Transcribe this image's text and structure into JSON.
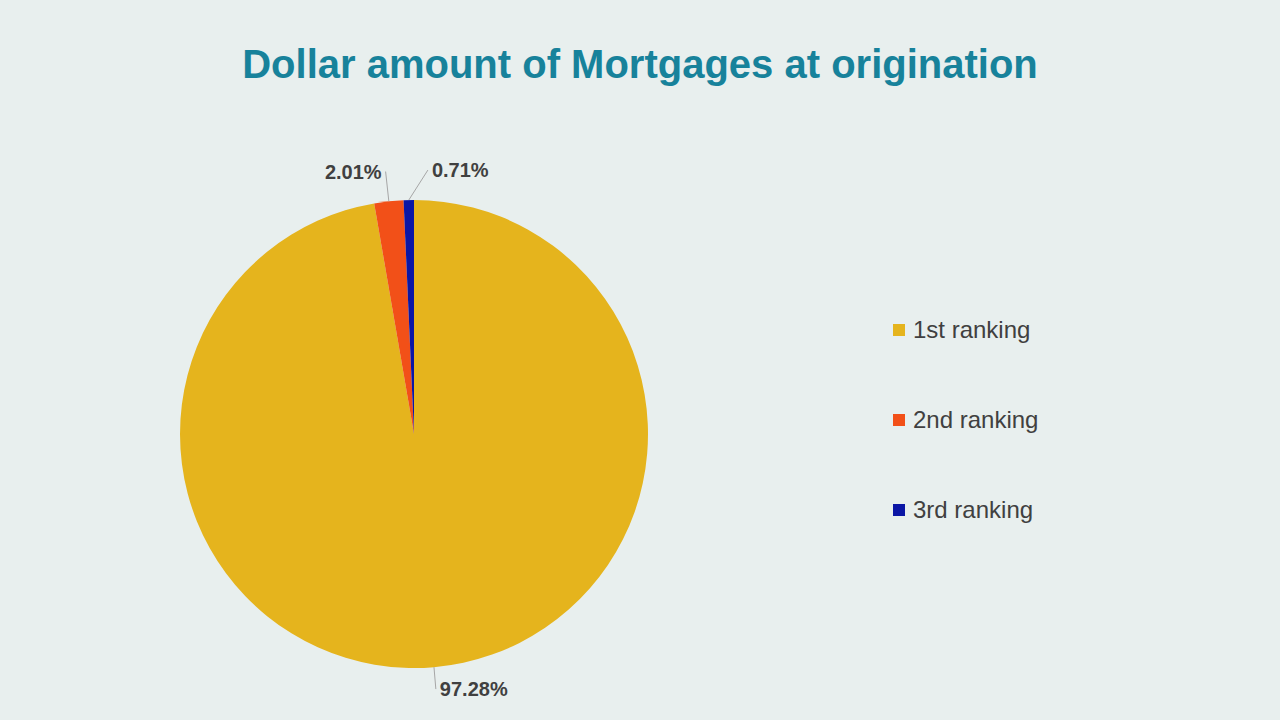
{
  "chart_data": {
    "type": "pie",
    "title": "Dollar amount of Mortgages at origination",
    "categories": [
      "1st ranking",
      "2nd ranking",
      "3rd ranking"
    ],
    "values": [
      97.28,
      2.01,
      0.71
    ],
    "value_labels": [
      "97.28%",
      "2.01%",
      "0.71%"
    ],
    "colors": [
      "#e5b41d",
      "#f25018",
      "#0b16a5"
    ],
    "data_labels": true,
    "legend": "right"
  }
}
